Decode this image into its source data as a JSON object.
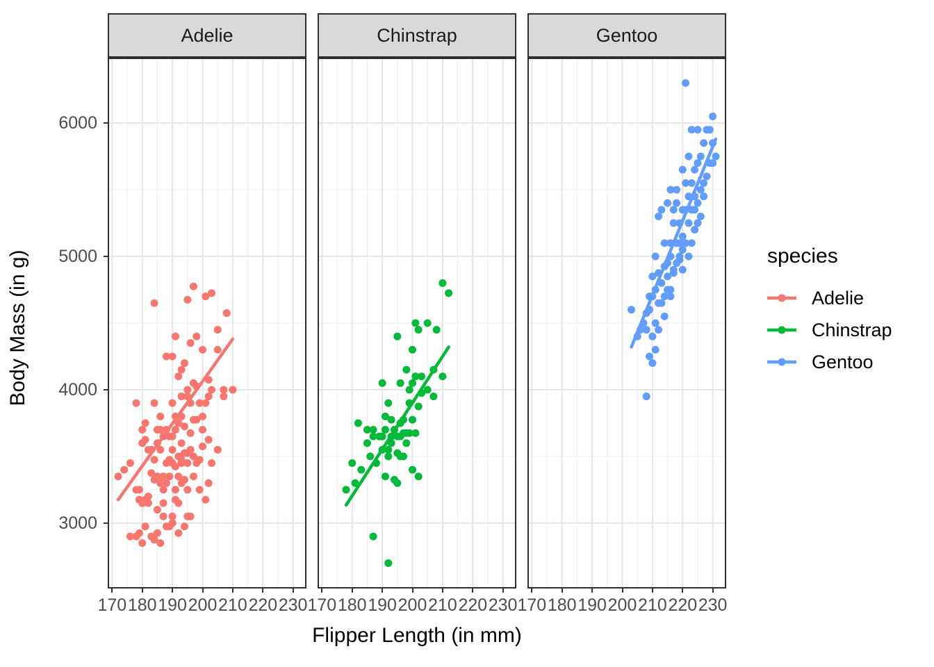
{
  "chart_data": {
    "type": "scatter",
    "title": "",
    "xlabel": "Flipper Length (in mm)",
    "ylabel": "Body Mass (in g)",
    "facets": [
      "Adelie",
      "Chinstrap",
      "Gentoo"
    ],
    "legend": {
      "title": "species",
      "position": "right"
    },
    "axes": {
      "x_ticks": [
        170,
        180,
        190,
        200,
        210,
        220,
        230
      ],
      "y_ticks": [
        3000,
        4000,
        5000,
        6000
      ],
      "x_range": [
        169,
        234
      ],
      "y_range": [
        2520,
        6480
      ],
      "x_minor_step": 5,
      "y_minor_step": 500,
      "grid": true
    },
    "style": {
      "strip_fill": "#D9D9D9",
      "panel_border": "#2F2F2F",
      "grid_major": "#E5E5E5",
      "grid_minor": "#F0F0F0",
      "tick_label_color": "#4D4D4D",
      "point_radius": 5.5,
      "trend_width": 4.5
    },
    "series": [
      {
        "name": "Adelie",
        "color": "#F8766D",
        "trend": [
          [
            172,
            3175
          ],
          [
            210,
            4380
          ]
        ],
        "points": [
          [
            172,
            3350
          ],
          [
            174,
            3400
          ],
          [
            176,
            3450
          ],
          [
            176,
            2900
          ],
          [
            178,
            3250
          ],
          [
            178,
            3900
          ],
          [
            178,
            2900
          ],
          [
            179,
            3175
          ],
          [
            179,
            2925
          ],
          [
            179,
            3250
          ],
          [
            180,
            3700
          ],
          [
            180,
            3150
          ],
          [
            180,
            2850
          ],
          [
            180,
            3600
          ],
          [
            181,
            3750
          ],
          [
            181,
            3625
          ],
          [
            181,
            3175
          ],
          [
            181,
            2975
          ],
          [
            182,
            3200
          ],
          [
            182,
            3550
          ],
          [
            182,
            3150
          ],
          [
            183,
            3550
          ],
          [
            183,
            2900
          ],
          [
            183,
            3375
          ],
          [
            184,
            3325
          ],
          [
            184,
            3475
          ],
          [
            184,
            2875
          ],
          [
            184,
            3900
          ],
          [
            184,
            4650
          ],
          [
            185,
            3700
          ],
          [
            185,
            3350
          ],
          [
            185,
            3100
          ],
          [
            185,
            2925
          ],
          [
            185,
            3600
          ],
          [
            186,
            3800
          ],
          [
            186,
            3300
          ],
          [
            186,
            2850
          ],
          [
            186,
            3700
          ],
          [
            186,
            3550
          ],
          [
            187,
            3250
          ],
          [
            187,
            3650
          ],
          [
            187,
            3350
          ],
          [
            187,
            3150
          ],
          [
            187,
            3050
          ],
          [
            188,
            3450
          ],
          [
            188,
            2975
          ],
          [
            188,
            3300
          ],
          [
            188,
            4250
          ],
          [
            188,
            3700
          ],
          [
            189,
            3650
          ],
          [
            189,
            3475
          ],
          [
            189,
            3350
          ],
          [
            189,
            2975
          ],
          [
            190,
            3650
          ],
          [
            190,
            4250
          ],
          [
            190,
            3050
          ],
          [
            190,
            3450
          ],
          [
            190,
            3900
          ],
          [
            190,
            3550
          ],
          [
            190,
            3000
          ],
          [
            191,
            3800
          ],
          [
            191,
            3700
          ],
          [
            191,
            3175
          ],
          [
            191,
            3250
          ],
          [
            191,
            4400
          ],
          [
            191,
            3425
          ],
          [
            192,
            3500
          ],
          [
            192,
            4100
          ],
          [
            192,
            2925
          ],
          [
            192,
            3350
          ],
          [
            192,
            3750
          ],
          [
            192,
            3150
          ],
          [
            193,
            3450
          ],
          [
            193,
            3475
          ],
          [
            193,
            4150
          ],
          [
            193,
            3800
          ],
          [
            193,
            3300
          ],
          [
            193,
            3600
          ],
          [
            193,
            3950
          ],
          [
            194,
            4200
          ],
          [
            194,
            3525
          ],
          [
            194,
            3725
          ],
          [
            194,
            3325
          ],
          [
            194,
            2975
          ],
          [
            195,
            3250
          ],
          [
            195,
            4675
          ],
          [
            195,
            3450
          ],
          [
            195,
            3050
          ],
          [
            195,
            3525
          ],
          [
            195,
            3950
          ],
          [
            195,
            4000
          ],
          [
            196,
            3550
          ],
          [
            196,
            4350
          ],
          [
            196,
            3900
          ],
          [
            196,
            3675
          ],
          [
            196,
            3050
          ],
          [
            197,
            4775
          ],
          [
            197,
            3775
          ],
          [
            197,
            3350
          ],
          [
            197,
            3500
          ],
          [
            197,
            4050
          ],
          [
            198,
            4400
          ],
          [
            198,
            3775
          ],
          [
            198,
            3450
          ],
          [
            198,
            4025
          ],
          [
            199,
            3900
          ],
          [
            199,
            3250
          ],
          [
            199,
            3475
          ],
          [
            200,
            3800
          ],
          [
            200,
            4300
          ],
          [
            200,
            3700
          ],
          [
            200,
            3575
          ],
          [
            201,
            4700
          ],
          [
            201,
            3900
          ],
          [
            201,
            3175
          ],
          [
            202,
            4075
          ],
          [
            202,
            3950
          ],
          [
            202,
            3625
          ],
          [
            202,
            3300
          ],
          [
            203,
            4725
          ],
          [
            203,
            4000
          ],
          [
            203,
            3450
          ],
          [
            205,
            4300
          ],
          [
            205,
            3550
          ],
          [
            205,
            4450
          ],
          [
            207,
            4000
          ],
          [
            207,
            3950
          ],
          [
            208,
            4575
          ],
          [
            210,
            4000
          ]
        ]
      },
      {
        "name": "Chinstrap",
        "color": "#00BA38",
        "trend": [
          [
            178,
            3135
          ],
          [
            212,
            4320
          ]
        ],
        "points": [
          [
            178,
            3250
          ],
          [
            180,
            3450
          ],
          [
            181,
            3300
          ],
          [
            182,
            3750
          ],
          [
            183,
            3400
          ],
          [
            185,
            3600
          ],
          [
            185,
            3700
          ],
          [
            186,
            3500
          ],
          [
            187,
            2900
          ],
          [
            187,
            3650
          ],
          [
            187,
            3700
          ],
          [
            188,
            3450
          ],
          [
            189,
            3650
          ],
          [
            190,
            3550
          ],
          [
            190,
            3650
          ],
          [
            190,
            4050
          ],
          [
            191,
            3700
          ],
          [
            191,
            3350
          ],
          [
            191,
            3800
          ],
          [
            192,
            2700
          ],
          [
            192,
            3500
          ],
          [
            192,
            3900
          ],
          [
            192,
            3550
          ],
          [
            193,
            3600
          ],
          [
            193,
            3775
          ],
          [
            193,
            3650
          ],
          [
            194,
            3325
          ],
          [
            194,
            3700
          ],
          [
            195,
            3300
          ],
          [
            195,
            3650
          ],
          [
            195,
            3525
          ],
          [
            195,
            4400
          ],
          [
            196,
            3500
          ],
          [
            196,
            3650
          ],
          [
            196,
            3750
          ],
          [
            196,
            4050
          ],
          [
            197,
            3675
          ],
          [
            197,
            3775
          ],
          [
            197,
            3500
          ],
          [
            198,
            3675
          ],
          [
            198,
            4150
          ],
          [
            198,
            3600
          ],
          [
            199,
            3900
          ],
          [
            199,
            4000
          ],
          [
            199,
            3675
          ],
          [
            200,
            4050
          ],
          [
            200,
            3775
          ],
          [
            200,
            3400
          ],
          [
            200,
            4300
          ],
          [
            201,
            4100
          ],
          [
            201,
            3675
          ],
          [
            201,
            4500
          ],
          [
            202,
            3875
          ],
          [
            202,
            4450
          ],
          [
            202,
            3350
          ],
          [
            203,
            4100
          ],
          [
            203,
            3975
          ],
          [
            205,
            4500
          ],
          [
            205,
            4000
          ],
          [
            207,
            4150
          ],
          [
            207,
            3950
          ],
          [
            208,
            4450
          ],
          [
            210,
            4100
          ],
          [
            210,
            4800
          ],
          [
            212,
            4725
          ]
        ]
      },
      {
        "name": "Gentoo",
        "color": "#619CFF",
        "trend": [
          [
            203,
            4320
          ],
          [
            231,
            5880
          ]
        ],
        "points": [
          [
            203,
            4600
          ],
          [
            205,
            4400
          ],
          [
            206,
            4450
          ],
          [
            207,
            4500
          ],
          [
            208,
            3950
          ],
          [
            208,
            4575
          ],
          [
            208,
            4450
          ],
          [
            209,
            4250
          ],
          [
            209,
            4600
          ],
          [
            209,
            4700
          ],
          [
            210,
            4200
          ],
          [
            210,
            4400
          ],
          [
            210,
            4700
          ],
          [
            210,
            4850
          ],
          [
            211,
            4500
          ],
          [
            211,
            4300
          ],
          [
            211,
            4750
          ],
          [
            211,
            5000
          ],
          [
            212,
            4450
          ],
          [
            212,
            4650
          ],
          [
            212,
            4875
          ],
          [
            212,
            5300
          ],
          [
            213,
            4650
          ],
          [
            213,
            4800
          ],
          [
            213,
            5350
          ],
          [
            214,
            4550
          ],
          [
            214,
            4925
          ],
          [
            214,
            5100
          ],
          [
            214,
            4700
          ],
          [
            215,
            4750
          ],
          [
            215,
            4850
          ],
          [
            215,
            5400
          ],
          [
            215,
            4950
          ],
          [
            216,
            4700
          ],
          [
            216,
            5000
          ],
          [
            216,
            5100
          ],
          [
            216,
            5500
          ],
          [
            216,
            4750
          ],
          [
            217,
            4875
          ],
          [
            217,
            5250
          ],
          [
            217,
            5350
          ],
          [
            217,
            4900
          ],
          [
            218,
            5100
          ],
          [
            218,
            4950
          ],
          [
            218,
            5400
          ],
          [
            218,
            5500
          ],
          [
            219,
            5000
          ],
          [
            219,
            5100
          ],
          [
            219,
            5250
          ],
          [
            219,
            4975
          ],
          [
            220,
            5150
          ],
          [
            220,
            5350
          ],
          [
            220,
            5650
          ],
          [
            220,
            5050
          ],
          [
            220,
            4900
          ],
          [
            221,
            6300
          ],
          [
            221,
            5100
          ],
          [
            221,
            5350
          ],
          [
            221,
            5550
          ],
          [
            222,
            5250
          ],
          [
            222,
            5450
          ],
          [
            222,
            5750
          ],
          [
            222,
            5000
          ],
          [
            223,
            5350
          ],
          [
            223,
            5550
          ],
          [
            223,
            5100
          ],
          [
            223,
            5950
          ],
          [
            224,
            5350
          ],
          [
            224,
            5650
          ],
          [
            224,
            5450
          ],
          [
            224,
            5200
          ],
          [
            225,
            5400
          ],
          [
            225,
            5700
          ],
          [
            225,
            5950
          ],
          [
            225,
            5250
          ],
          [
            226,
            5500
          ],
          [
            226,
            5750
          ],
          [
            226,
            5300
          ],
          [
            227,
            5550
          ],
          [
            227,
            5850
          ],
          [
            227,
            5450
          ],
          [
            228,
            5600
          ],
          [
            228,
            5950
          ],
          [
            229,
            5700
          ],
          [
            229,
            5950
          ],
          [
            230,
            5700
          ],
          [
            230,
            5850
          ],
          [
            230,
            6050
          ],
          [
            231,
            5750
          ]
        ]
      }
    ]
  }
}
